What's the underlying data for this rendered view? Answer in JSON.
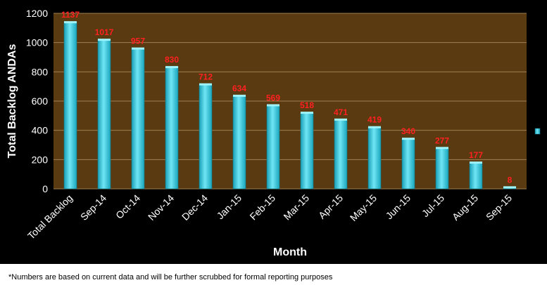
{
  "chart_data": {
    "type": "bar",
    "categories": [
      "Total Backlog",
      "Sep-14",
      "Oct-14",
      "Nov-14",
      "Dec-14",
      "Jan-15",
      "Feb-15",
      "Mar-15",
      "Apr-15",
      "May-15",
      "Jun-15",
      "Jul-15",
      "Aug-15",
      "Sep-15"
    ],
    "values": [
      1137,
      1017,
      957,
      830,
      712,
      634,
      569,
      518,
      471,
      419,
      340,
      277,
      177,
      8
    ],
    "data_labels": [
      "1137",
      "1017",
      "957",
      "830",
      "712",
      "634",
      "569",
      "518",
      "471",
      "419",
      "340",
      "277",
      "177",
      "8"
    ],
    "xlabel": "Month",
    "ylabel": "Total Backlog ANDAs",
    "ylim": [
      0,
      1200
    ],
    "yticks": [
      "0",
      "200",
      "400",
      "600",
      "800",
      "1000",
      "1200"
    ],
    "ytick_values": [
      0,
      200,
      400,
      600,
      800,
      1000,
      1200
    ],
    "grid": true,
    "legend": "right",
    "colors": {
      "plot_background": "#5a3a10",
      "bar": "#2ec9e0",
      "data_label": "#ff2020",
      "grid": "#a08050"
    }
  },
  "footnote": "*Numbers are based on current data and will be further scrubbed for formal reporting purposes"
}
